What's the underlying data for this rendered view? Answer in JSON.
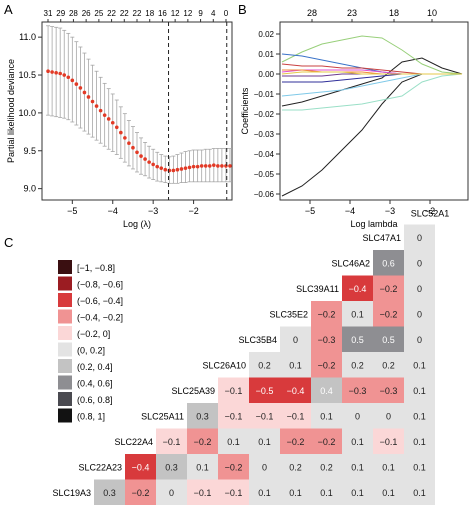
{
  "panel_labels": {
    "a": "A",
    "b": "B",
    "c": "C"
  },
  "chart_data": [
    {
      "type": "line",
      "panel": "A",
      "xlabel": "Log (λ)",
      "ylabel": "Partial likelihood deviance",
      "x_ticks": [
        "−5",
        "−4",
        "−3",
        "−2"
      ],
      "y_ticks": [
        "9.0",
        "9.5",
        "10.0",
        "10.5",
        "11.0"
      ],
      "top_ticks": [
        "31",
        "29",
        "28",
        "26",
        "25",
        "22",
        "22",
        "22",
        "18",
        "16",
        "12",
        "12",
        "9",
        "4",
        "0"
      ],
      "xlim": [
        -5.75,
        -1.05
      ],
      "ylim": [
        8.85,
        11.2
      ],
      "vlines": [
        -2.62,
        -1.18
      ],
      "x": [
        -5.6,
        -5.5,
        -5.4,
        -5.3,
        -5.2,
        -5.1,
        -5.0,
        -4.9,
        -4.8,
        -4.7,
        -4.6,
        -4.5,
        -4.4,
        -4.3,
        -4.2,
        -4.1,
        -4.0,
        -3.9,
        -3.8,
        -3.7,
        -3.6,
        -3.5,
        -3.4,
        -3.3,
        -3.2,
        -3.1,
        -3.0,
        -2.9,
        -2.8,
        -2.7,
        -2.6,
        -2.5,
        -2.4,
        -2.3,
        -2.2,
        -2.1,
        -2.0,
        -1.9,
        -1.8,
        -1.7,
        -1.6,
        -1.5,
        -1.4,
        -1.3,
        -1.2,
        -1.1
      ],
      "y": [
        10.55,
        10.54,
        10.53,
        10.52,
        10.5,
        10.47,
        10.43,
        10.38,
        10.33,
        10.27,
        10.21,
        10.15,
        10.09,
        10.03,
        9.97,
        9.92,
        9.87,
        9.81,
        9.74,
        9.67,
        9.6,
        9.54,
        9.48,
        9.43,
        9.39,
        9.35,
        9.32,
        9.29,
        9.27,
        9.25,
        9.24,
        9.24,
        9.25,
        9.26,
        9.27,
        9.28,
        9.29,
        9.29,
        9.3,
        9.3,
        9.3,
        9.31,
        9.3,
        9.3,
        9.3,
        9.3
      ],
      "err_upper": [
        11.15,
        11.14,
        11.13,
        11.12,
        11.09,
        11.05,
        11.0,
        10.94,
        10.87,
        10.79,
        10.71,
        10.63,
        10.55,
        10.47,
        10.39,
        10.32,
        10.25,
        10.17,
        10.08,
        9.99,
        9.9,
        9.82,
        9.74,
        9.67,
        9.61,
        9.56,
        9.52,
        9.48,
        9.45,
        9.43,
        9.42,
        9.43,
        9.45,
        9.47,
        9.49,
        9.5,
        9.51,
        9.51,
        9.51,
        9.52,
        9.52,
        9.53,
        9.53,
        9.53,
        9.53,
        9.53
      ],
      "err_lower": [
        9.97,
        9.96,
        9.95,
        9.94,
        9.93,
        9.91,
        9.88,
        9.84,
        9.8,
        9.76,
        9.72,
        9.68,
        9.64,
        9.6,
        9.56,
        9.52,
        9.49,
        9.45,
        9.4,
        9.35,
        9.3,
        9.26,
        9.22,
        9.19,
        9.17,
        9.14,
        9.12,
        9.1,
        9.09,
        9.08,
        9.07,
        9.07,
        9.07,
        9.08,
        9.08,
        9.09,
        9.09,
        9.09,
        9.09,
        9.09,
        9.09,
        9.09,
        9.09,
        9.09,
        9.09,
        9.09
      ],
      "colors": {
        "points": "#e23a26",
        "bars": "#a6a6a6",
        "vline": "#222222"
      }
    },
    {
      "type": "line",
      "panel": "B",
      "xlabel": "Log lambda",
      "ylabel": "Coefficients",
      "x_ticks": [
        "−5",
        "−4",
        "−3",
        "−2"
      ],
      "y_ticks": [
        "−0.06",
        "−0.05",
        "−0.04",
        "−0.03",
        "−0.02",
        "−0.01",
        "0.00",
        "0.01",
        "0.02"
      ],
      "top_ticks": [
        "28",
        "23",
        "18",
        "10"
      ],
      "xlim": [
        -5.75,
        -1.05
      ],
      "ylim": [
        -0.063,
        0.026
      ],
      "x": [
        -5.7,
        -5.2,
        -4.7,
        -4.2,
        -3.7,
        -3.2,
        -2.7,
        -2.2,
        -1.7,
        -1.2
      ],
      "series": [
        {
          "color": "#222222",
          "values": [
            -0.061,
            -0.056,
            -0.048,
            -0.038,
            -0.028,
            -0.015,
            -0.004,
            0.0,
            0.0,
            0.0
          ]
        },
        {
          "color": "#222222",
          "values": [
            -0.016,
            -0.014,
            -0.011,
            -0.008,
            -0.005,
            -0.002,
            0.006,
            0.008,
            0.003,
            0.0
          ]
        },
        {
          "color": "#9adfc7",
          "values": [
            -0.018,
            -0.018,
            -0.017,
            -0.016,
            -0.015,
            -0.013,
            -0.011,
            -0.004,
            -0.001,
            0.0
          ]
        },
        {
          "color": "#98cf7a",
          "values": [
            0.006,
            0.011,
            0.015,
            0.017,
            0.019,
            0.018,
            0.012,
            0.005,
            0.001,
            0.0
          ]
        },
        {
          "color": "#3a72c8",
          "values": [
            0.01,
            0.009,
            0.007,
            0.005,
            0.003,
            0.001,
            0.0,
            0.0,
            0.0,
            0.0
          ]
        },
        {
          "color": "#c94040",
          "values": [
            0.005,
            0.004,
            0.004,
            0.003,
            0.003,
            0.002,
            0.001,
            0.0,
            0.0,
            0.0
          ]
        },
        {
          "color": "#2f2f9a",
          "values": [
            -0.004,
            -0.004,
            -0.004,
            -0.003,
            -0.002,
            -0.001,
            0.0,
            0.0,
            0.0,
            0.0
          ]
        },
        {
          "color": "#e04fcf",
          "values": [
            0.001,
            0.002,
            0.002,
            0.002,
            0.002,
            0.001,
            0.0,
            0.0,
            0.0,
            0.0
          ]
        },
        {
          "color": "#7fc9e8",
          "values": [
            -0.011,
            -0.01,
            -0.009,
            -0.008,
            -0.006,
            -0.004,
            -0.002,
            0.0,
            0.0,
            0.0
          ]
        },
        {
          "color": "#f08a3a",
          "values": [
            0.002,
            0.002,
            0.001,
            0.001,
            0.001,
            0.0,
            0.0,
            0.0,
            0.0,
            0.0
          ]
        },
        {
          "color": "#6c3b8f",
          "values": [
            -0.001,
            -0.001,
            -0.001,
            0.0,
            0.0,
            0.0,
            0.0,
            0.0,
            0.0,
            0.0
          ]
        },
        {
          "color": "#e4c94a",
          "values": [
            0.0,
            0.001,
            0.001,
            0.001,
            0.0,
            0.0,
            0.0,
            0.0,
            0.0,
            0.0
          ]
        }
      ]
    },
    {
      "type": "heatmap",
      "panel": "C",
      "genes": [
        "SLC19A3",
        "SLC22A23",
        "SLC22A4",
        "SLC25A11",
        "SLC25A39",
        "SLC26A10",
        "SLC35B4",
        "SLC35E2",
        "SLC39A11",
        "SLC46A2",
        "SLC47A1",
        "SLC52A1"
      ],
      "matrix": [
        [
          0.3,
          -0.2,
          0,
          -0.1,
          -0.1,
          0.1,
          0.1,
          0.1,
          0.1,
          0.1,
          0.1
        ],
        [
          -0.4,
          0.3,
          0.1,
          -0.2,
          0,
          0.2,
          0.2,
          0.1,
          0.1,
          0.1
        ],
        [
          -0.1,
          -0.2,
          0.1,
          0.1,
          -0.2,
          -0.2,
          0.1,
          -0.1,
          0.1
        ],
        [
          0.3,
          -0.1,
          -0.1,
          -0.1,
          0.1,
          0,
          0,
          0.1
        ],
        [
          -0.1,
          -0.5,
          -0.4,
          0.4,
          -0.3,
          -0.3,
          0.1
        ],
        [
          0.2,
          0.1,
          -0.2,
          0.2,
          0.2,
          0.1
        ],
        [
          0,
          -0.3,
          0.5,
          0.5,
          0
        ],
        [
          -0.2,
          0.1,
          -0.2,
          0
        ],
        [
          -0.4,
          -0.2,
          0
        ],
        [
          0.6,
          0
        ],
        [
          0
        ]
      ],
      "legend": [
        {
          "label": "[−1, −0.8]",
          "color": "#3a0f11"
        },
        {
          "label": "(−0.8, −0.6]",
          "color": "#9b1c22"
        },
        {
          "label": "(−0.6, −0.4]",
          "color": "#d83a3c"
        },
        {
          "label": "(−0.4, −0.2]",
          "color": "#f09393"
        },
        {
          "label": "(−0.2, 0]",
          "color": "#fbd7d7"
        },
        {
          "label": "(0, 0.2]",
          "color": "#e3e3e3"
        },
        {
          "label": "(0.2, 0.4]",
          "color": "#c3c3c3"
        },
        {
          "label": "(0.4, 0.6]",
          "color": "#8e8e92"
        },
        {
          "label": "(0.6, 0.8]",
          "color": "#4a4a50"
        },
        {
          "label": "(0.8, 1]",
          "color": "#121212"
        }
      ]
    }
  ]
}
